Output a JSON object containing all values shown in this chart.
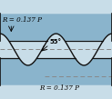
{
  "bg_light": "#c8dde8",
  "bg_dark": "#8ab4cc",
  "bg_mid": "#aac8d8",
  "thread_color": "#111111",
  "centerline_color": "#888888",
  "text_color": "#000000",
  "label_top": "R = 0.137 P",
  "label_bottom": "R = 0.137 P",
  "angle_label": "55°",
  "figsize": [
    1.23,
    1.09
  ],
  "dpi": 100,
  "n_waves": 2,
  "wave_period": 1.0,
  "wave_amp": 0.32
}
